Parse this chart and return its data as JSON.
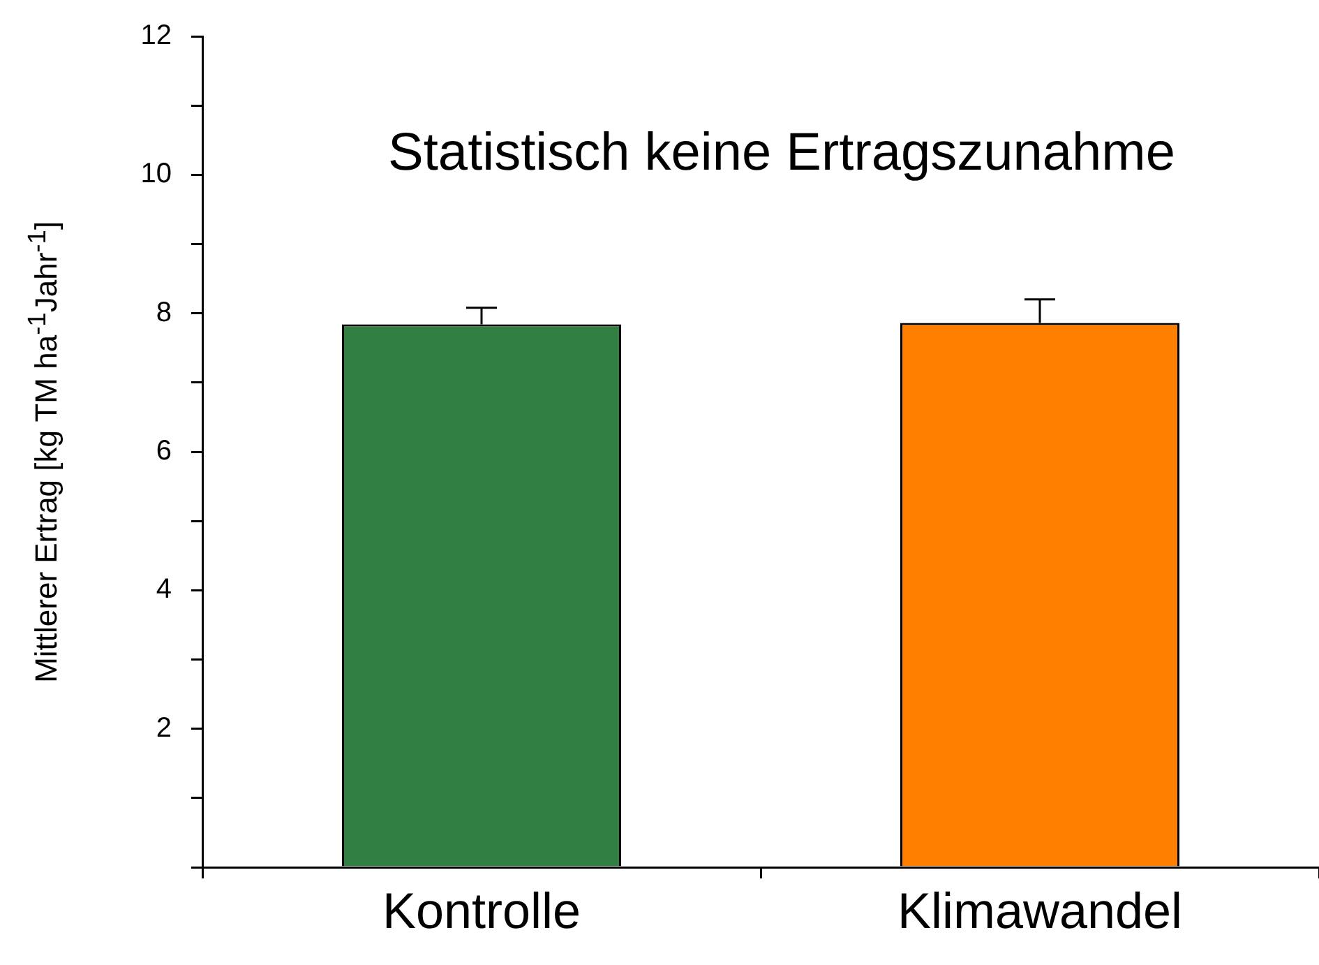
{
  "chart_data": {
    "type": "bar",
    "ylabel": "Mittlerer Ertrag [kg TM ha$^{-1}$Jahr$^{-1}$]",
    "annotations": [
      "Statistisch keine Ertragszunahme"
    ],
    "categories": [
      "Kontrolle",
      "Klimawandel"
    ],
    "values": [
      7.84,
      7.86
    ],
    "errors": [
      0.24,
      0.34
    ],
    "colors": [
      "#317f43",
      "#ff8000"
    ],
    "ylim": [
      0,
      12
    ],
    "yticks": [
      {
        "value": 0,
        "label": null
      },
      {
        "value": 1,
        "label": null
      },
      2,
      {
        "value": 3,
        "label": null
      },
      4,
      {
        "value": 5,
        "label": null
      },
      6,
      {
        "value": 7,
        "label": null
      },
      8,
      {
        "value": 9,
        "label": null
      },
      10,
      {
        "value": 11,
        "label": null
      },
      12
    ]
  }
}
